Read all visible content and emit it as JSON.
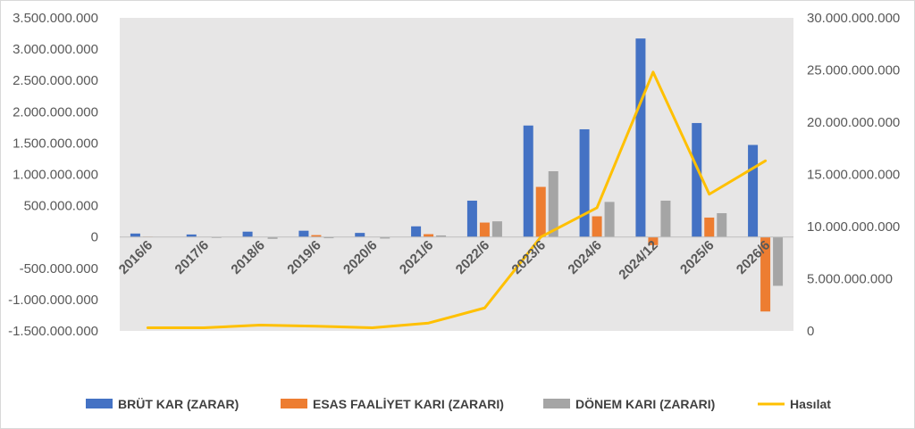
{
  "chart_data": {
    "type": "bar",
    "categories": [
      "2016/6",
      "2017/6",
      "2018/6",
      "2019/6",
      "2020/6",
      "2021/6",
      "2022/6",
      "2023/6",
      "2024/6",
      "2024/12",
      "2025/6",
      "2026/6"
    ],
    "series": [
      {
        "name": "BRÜT KAR (ZARAR)",
        "type": "bar",
        "axis": "left",
        "color": "#4472c4",
        "values": [
          55000000,
          40000000,
          85000000,
          100000000,
          65000000,
          170000000,
          580000000,
          1780000000,
          1720000000,
          3170000000,
          1820000000,
          1470000000
        ]
      },
      {
        "name": "ESAS FAALİYET KARI (ZARARI)",
        "type": "bar",
        "axis": "left",
        "color": "#ed7d31",
        "values": [
          5000000,
          0,
          0,
          30000000,
          0,
          45000000,
          230000000,
          800000000,
          330000000,
          -130000000,
          310000000,
          -1190000000
        ]
      },
      {
        "name": "DÖNEM KARI (ZARARI)",
        "type": "bar",
        "axis": "left",
        "color": "#a5a5a5",
        "values": [
          0,
          -15000000,
          -30000000,
          -20000000,
          -25000000,
          25000000,
          250000000,
          1050000000,
          560000000,
          580000000,
          380000000,
          -780000000
        ]
      },
      {
        "name": "Hasılat",
        "type": "line",
        "axis": "right",
        "color": "#ffc000",
        "values": [
          300000000,
          300000000,
          550000000,
          450000000,
          300000000,
          750000000,
          2200000000,
          9000000000,
          11800000000,
          24800000000,
          13100000000,
          16300000000
        ]
      }
    ],
    "y_left": {
      "min": -1500000000,
      "max": 3500000000,
      "ticks": [
        3500000000,
        3000000000,
        2500000000,
        2000000000,
        1500000000,
        1000000000,
        500000000,
        0,
        -500000000,
        -1000000000,
        -1500000000
      ],
      "tick_labels": [
        "3.500.000.000",
        "3.000.000.000",
        "2.500.000.000",
        "2.000.000.000",
        "1.500.000.000",
        "1.000.000.000",
        "500.000.000",
        "0",
        "-500.000.000",
        "-1.000.000.000",
        "-1.500.000.000"
      ]
    },
    "y_right": {
      "min": 0,
      "max": 30000000000,
      "ticks": [
        30000000000,
        25000000000,
        20000000000,
        15000000000,
        10000000000,
        5000000000,
        0
      ],
      "tick_labels": [
        "30.000.000.000",
        "25.000.000.000",
        "20.000.000.000",
        "15.000.000.000",
        "10.000.000.000",
        "5.000.000.000",
        "0"
      ]
    },
    "plot_background": "#e7e6e6",
    "grid": false,
    "legend_position": "bottom"
  }
}
